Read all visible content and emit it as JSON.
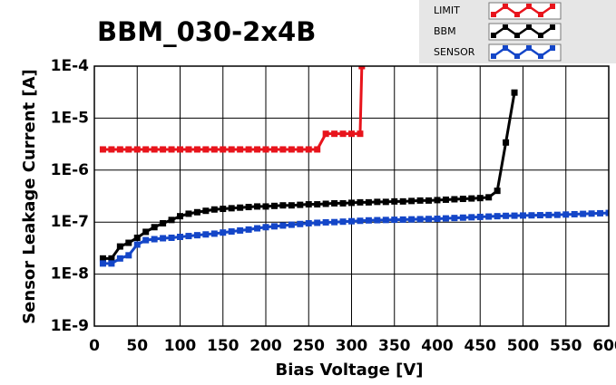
{
  "chart_data": {
    "type": "line",
    "title": "BBM_030-2x4B",
    "x_label": "Bias Voltage [V]",
    "y_label": "Sensor Leakage Current [A]",
    "xlim": [
      0,
      600
    ],
    "xticks": [
      0,
      50,
      100,
      150,
      200,
      250,
      300,
      350,
      400,
      450,
      500,
      550,
      600
    ],
    "ylim": [
      1e-09,
      0.0001
    ],
    "y_scale": "log",
    "yticks": [
      {
        "value": 1e-09,
        "label": "1E-9"
      },
      {
        "value": 1e-08,
        "label": "1E-8"
      },
      {
        "value": 1e-07,
        "label": "1E-7"
      },
      {
        "value": 1e-06,
        "label": "1E-6"
      },
      {
        "value": 1e-05,
        "label": "1E-5"
      },
      {
        "value": 0.0001,
        "label": "1E-4"
      }
    ],
    "grid": true,
    "legend": "top-right",
    "series": [
      {
        "name": "LIMIT",
        "color": "#e8141c",
        "x": [
          10,
          20,
          30,
          40,
          50,
          60,
          70,
          80,
          90,
          100,
          110,
          120,
          130,
          140,
          150,
          160,
          170,
          180,
          190,
          200,
          210,
          220,
          230,
          240,
          250,
          260,
          270,
          280,
          290,
          300,
          310,
          312
        ],
        "values": [
          2.5e-06,
          2.5e-06,
          2.5e-06,
          2.5e-06,
          2.5e-06,
          2.5e-06,
          2.5e-06,
          2.5e-06,
          2.5e-06,
          2.5e-06,
          2.5e-06,
          2.5e-06,
          2.5e-06,
          2.5e-06,
          2.5e-06,
          2.5e-06,
          2.5e-06,
          2.5e-06,
          2.5e-06,
          2.5e-06,
          2.5e-06,
          2.5e-06,
          2.5e-06,
          2.5e-06,
          2.5e-06,
          2.5e-06,
          5e-06,
          5e-06,
          5e-06,
          5e-06,
          5e-06,
          0.0001
        ]
      },
      {
        "name": "BBM",
        "color": "#000000",
        "x": [
          10,
          20,
          30,
          40,
          50,
          60,
          70,
          80,
          90,
          100,
          110,
          120,
          130,
          140,
          150,
          160,
          170,
          180,
          190,
          200,
          210,
          220,
          230,
          240,
          250,
          260,
          270,
          280,
          290,
          300,
          310,
          320,
          330,
          340,
          350,
          360,
          370,
          380,
          390,
          400,
          410,
          420,
          430,
          440,
          450,
          460,
          470,
          480,
          490
        ],
        "values": [
          2e-08,
          2e-08,
          3.4e-08,
          4e-08,
          5e-08,
          6.5e-08,
          8e-08,
          9.5e-08,
          1.1e-07,
          1.3e-07,
          1.45e-07,
          1.55e-07,
          1.65e-07,
          1.75e-07,
          1.8e-07,
          1.85e-07,
          1.9e-07,
          1.95e-07,
          2e-07,
          2e-07,
          2.05e-07,
          2.1e-07,
          2.1e-07,
          2.15e-07,
          2.2e-07,
          2.2e-07,
          2.25e-07,
          2.3e-07,
          2.3e-07,
          2.35e-07,
          2.4e-07,
          2.4e-07,
          2.45e-07,
          2.45e-07,
          2.5e-07,
          2.5e-07,
          2.55e-07,
          2.6e-07,
          2.6e-07,
          2.65e-07,
          2.7e-07,
          2.75e-07,
          2.8e-07,
          2.85e-07,
          2.9e-07,
          3e-07,
          4e-07,
          3.4e-06,
          3.1e-05
        ]
      },
      {
        "name": "SENSOR",
        "color": "#1446c8",
        "x": [
          10,
          20,
          30,
          40,
          50,
          60,
          70,
          80,
          90,
          100,
          110,
          120,
          130,
          140,
          150,
          160,
          170,
          180,
          190,
          200,
          210,
          220,
          230,
          240,
          250,
          260,
          270,
          280,
          290,
          300,
          310,
          320,
          330,
          340,
          350,
          360,
          370,
          380,
          390,
          400,
          410,
          420,
          430,
          440,
          450,
          460,
          470,
          480,
          490,
          500,
          510,
          520,
          530,
          540,
          550,
          560,
          570,
          580,
          590,
          600
        ],
        "values": [
          1.6e-08,
          1.6e-08,
          2e-08,
          2.3e-08,
          3.7e-08,
          4.5e-08,
          4.7e-08,
          4.9e-08,
          5e-08,
          5.2e-08,
          5.4e-08,
          5.6e-08,
          5.8e-08,
          6e-08,
          6.3e-08,
          6.6e-08,
          6.9e-08,
          7.2e-08,
          7.6e-08,
          8e-08,
          8.3e-08,
          8.6e-08,
          8.9e-08,
          9.2e-08,
          9.5e-08,
          9.7e-08,
          9.9e-08,
          1e-07,
          1.02e-07,
          1.04e-07,
          1.06e-07,
          1.08e-07,
          1.09e-07,
          1.1e-07,
          1.11e-07,
          1.12e-07,
          1.13e-07,
          1.14e-07,
          1.15e-07,
          1.16e-07,
          1.18e-07,
          1.2e-07,
          1.22e-07,
          1.24e-07,
          1.26e-07,
          1.28e-07,
          1.3e-07,
          1.32e-07,
          1.33e-07,
          1.34e-07,
          1.35e-07,
          1.36e-07,
          1.37e-07,
          1.38e-07,
          1.4e-07,
          1.42e-07,
          1.44e-07,
          1.46e-07,
          1.48e-07,
          1.5e-07
        ]
      }
    ]
  }
}
